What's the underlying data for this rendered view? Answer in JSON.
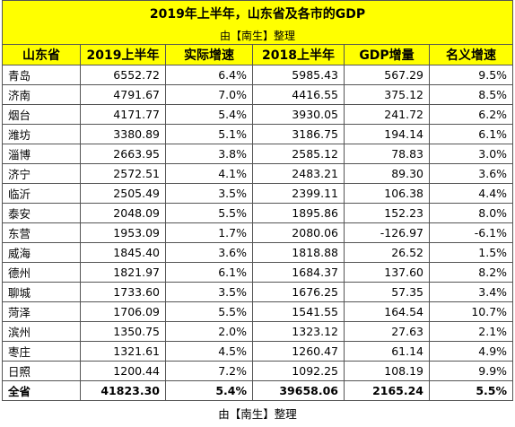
{
  "title": "2019年上半年，山东省及各市的GDP",
  "subtitle": "由【南生】整理",
  "table": {
    "header": [
      "山东省",
      "2019上半年",
      "实际增速",
      "2018上半年",
      "GDP增量",
      "名义增速"
    ],
    "rows": [
      [
        "青岛",
        "6552.72",
        "6.4%",
        "5985.43",
        "567.29",
        "9.5%"
      ],
      [
        "济南",
        "4791.67",
        "7.0%",
        "4416.55",
        "375.12",
        "8.5%"
      ],
      [
        "烟台",
        "4171.77",
        "5.4%",
        "3930.05",
        "241.72",
        "6.2%"
      ],
      [
        "潍坊",
        "3380.89",
        "5.1%",
        "3186.75",
        "194.14",
        "6.1%"
      ],
      [
        "淄博",
        "2663.95",
        "3.8%",
        "2585.12",
        "78.83",
        "3.0%"
      ],
      [
        "济宁",
        "2572.51",
        "4.1%",
        "2483.21",
        "89.30",
        "3.6%"
      ],
      [
        "临沂",
        "2505.49",
        "3.5%",
        "2399.11",
        "106.38",
        "4.4%"
      ],
      [
        "泰安",
        "2048.09",
        "5.5%",
        "1895.86",
        "152.23",
        "8.0%"
      ],
      [
        "东营",
        "1953.09",
        "1.7%",
        "2080.06",
        "-126.97",
        "-6.1%"
      ],
      [
        "威海",
        "1845.40",
        "3.6%",
        "1818.88",
        "26.52",
        "1.5%"
      ],
      [
        "德州",
        "1821.97",
        "6.1%",
        "1684.37",
        "137.60",
        "8.2%"
      ],
      [
        "聊城",
        "1733.60",
        "3.5%",
        "1676.25",
        "57.35",
        "3.4%"
      ],
      [
        "菏泽",
        "1706.09",
        "5.5%",
        "1541.55",
        "164.54",
        "10.7%"
      ],
      [
        "滨州",
        "1350.75",
        "2.0%",
        "1323.12",
        "27.63",
        "2.1%"
      ],
      [
        "枣庄",
        "1321.61",
        "4.5%",
        "1260.47",
        "61.14",
        "4.9%"
      ],
      [
        "日照",
        "1200.44",
        "7.2%",
        "1092.25",
        "108.19",
        "9.9%"
      ]
    ],
    "total": [
      "全省",
      "41823.30",
      "5.4%",
      "39658.06",
      "2165.24",
      "5.5%"
    ]
  },
  "footer": "由【南生】整理"
}
